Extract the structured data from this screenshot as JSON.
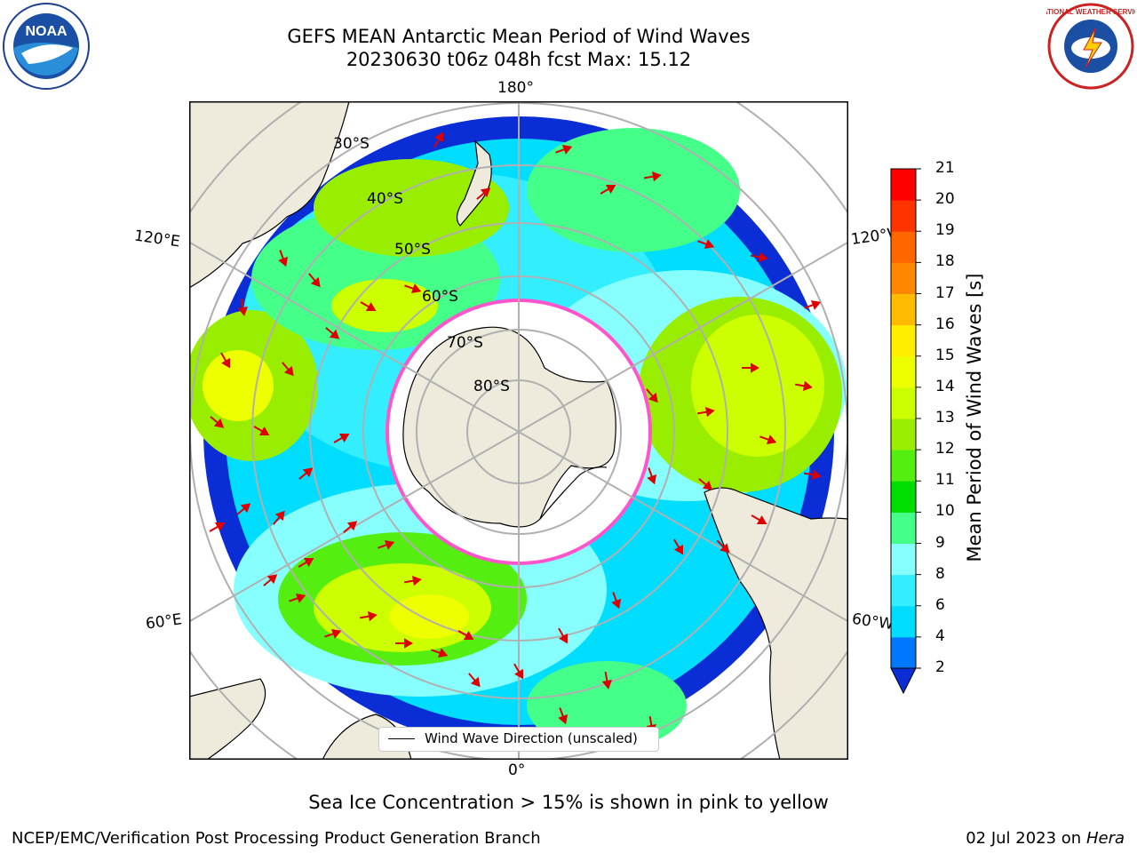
{
  "header": {
    "title_line1": "GEFS MEAN Antarctic Mean Period of Wind Waves",
    "title_line2": "20230630 t06z 048h fcst   Max: 15.12"
  },
  "logos": {
    "left": "NOAA",
    "right": "NATIONAL WEATHER SERVICE"
  },
  "map": {
    "longitude_labels": {
      "top": "180°",
      "bottom": "0°",
      "upper_left": "120°E",
      "upper_right": "120°W",
      "lower_left": "60°E",
      "lower_right": "60°W"
    },
    "latitude_labels": [
      "30°S",
      "40°S",
      "50°S",
      "60°S",
      "70°S",
      "80°S"
    ],
    "legend_label": "Wind Wave Direction (unscaled)",
    "colors": {
      "land": "#efebdc",
      "antarctic_ice": "#ffffff",
      "sea_ice_edge": "#ff55cc",
      "arrow": "#dd0000"
    }
  },
  "colorbar": {
    "label": "Mean Period of Wind Waves [s]",
    "ticks": [
      "2",
      "4",
      "6",
      "8",
      "9",
      "10",
      "11",
      "12",
      "13",
      "14",
      "15",
      "16",
      "17",
      "18",
      "19",
      "20",
      "21"
    ],
    "colors": [
      "#0a2dd6",
      "#0077ff",
      "#00ddff",
      "#33eeff",
      "#88ffff",
      "#44ff88",
      "#00dd00",
      "#55ee11",
      "#99ee00",
      "#ccff00",
      "#eeff00",
      "#ffee00",
      "#ffbb00",
      "#ff8800",
      "#ff6600",
      "#ff3300",
      "#ff0000"
    ],
    "extend_min": true
  },
  "caption": "Sea Ice Concentration > 15% is shown in pink to yellow",
  "footer": {
    "left": "NCEP/EMC/Verification Post Processing Product Generation Branch",
    "right_prefix": "02 Jul 2023 on ",
    "right_host": "Hera"
  }
}
